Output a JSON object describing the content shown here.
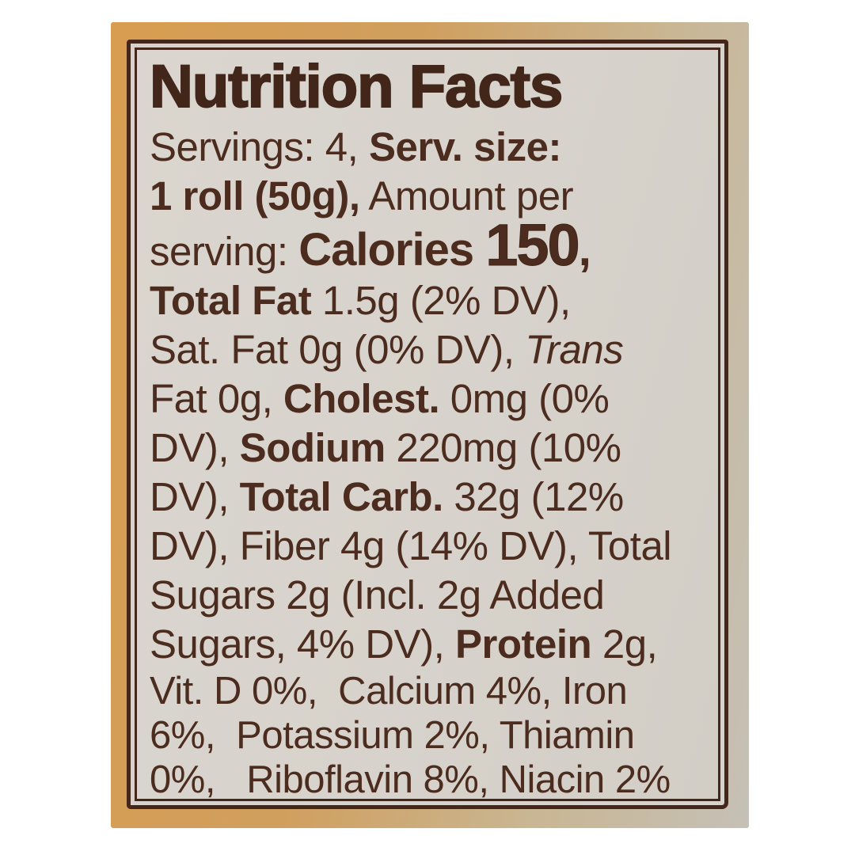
{
  "label": {
    "title": "Nutrition Facts",
    "lines": [
      {
        "segments": [
          {
            "t": "Servings: 4, ",
            "s": "r"
          },
          {
            "t": "Serv. size:",
            "s": "b"
          }
        ]
      },
      {
        "segments": [
          {
            "t": "1 roll (50g),",
            "s": "b"
          },
          {
            "t": " Amount per",
            "s": "r"
          }
        ]
      },
      {
        "segments": [
          {
            "t": "serving: ",
            "s": "r"
          },
          {
            "t": "Calories ",
            "s": "cal"
          },
          {
            "t": "150",
            "s": "num"
          },
          {
            "t": ",",
            "s": "cal"
          }
        ]
      },
      {
        "segments": [
          {
            "t": "Total Fat ",
            "s": "b"
          },
          {
            "t": "1.5g (2% DV),",
            "s": "r"
          }
        ]
      },
      {
        "segments": [
          {
            "t": "Sat. Fat 0g (0% DV), ",
            "s": "r"
          },
          {
            "t": "Trans",
            "s": "i"
          }
        ]
      },
      {
        "segments": [
          {
            "t": "Fat 0g, ",
            "s": "r"
          },
          {
            "t": "Cholest. ",
            "s": "b"
          },
          {
            "t": "0mg (0%",
            "s": "r"
          }
        ]
      },
      {
        "segments": [
          {
            "t": "DV), ",
            "s": "r"
          },
          {
            "t": "Sodium ",
            "s": "b"
          },
          {
            "t": "220mg (10%",
            "s": "r"
          }
        ]
      },
      {
        "segments": [
          {
            "t": "DV), ",
            "s": "r"
          },
          {
            "t": "Total Carb. ",
            "s": "b"
          },
          {
            "t": "32g (12%",
            "s": "r"
          }
        ]
      },
      {
        "segments": [
          {
            "t": "DV), Fiber 4g (14% DV), Total",
            "s": "r"
          }
        ]
      },
      {
        "segments": [
          {
            "t": "Sugars 2g (Incl. 2g Added",
            "s": "r"
          }
        ]
      },
      {
        "segments": [
          {
            "t": "Sugars, 4% DV), ",
            "s": "r"
          },
          {
            "t": "Protein ",
            "s": "b"
          },
          {
            "t": "2g,",
            "s": "r"
          }
        ]
      },
      {
        "segments": [
          {
            "t": "Vit. D 0%,  Calcium 4%, Iron",
            "s": "r"
          }
        ]
      },
      {
        "segments": [
          {
            "t": "6%,  Potassium 2%, Thiamin",
            "s": "r"
          }
        ]
      },
      {
        "segments": [
          {
            "t": "0%,   Riboflavin 8%, Niacin 2%",
            "s": "r"
          }
        ]
      }
    ],
    "facts": {
      "servings": "4",
      "serving_size": "1 roll (50g)",
      "calories": "150",
      "total_fat": "1.5g (2% DV)",
      "saturated_fat": "0g (0% DV)",
      "trans_fat": "0g",
      "cholesterol": "0mg (0% DV)",
      "sodium": "220mg (10% DV)",
      "total_carbohydrate": "32g (12% DV)",
      "fiber": "4g (14% DV)",
      "total_sugars": "2g (Incl. 2g Added Sugars, 4% DV)",
      "protein": "2g",
      "vitamin_d": "0%",
      "calcium": "4%",
      "iron": "6%",
      "potassium": "2%",
      "thiamin": "0%",
      "riboflavin": "8%",
      "niacin": "2%"
    },
    "colors": {
      "page_background": "#ffffff",
      "package_edge_tan": "#d89d50",
      "package_edge_gray": "#c5c0b6",
      "label_background": "#d7d3cc",
      "border": "#45261a",
      "text": "#4b2c1e"
    }
  }
}
